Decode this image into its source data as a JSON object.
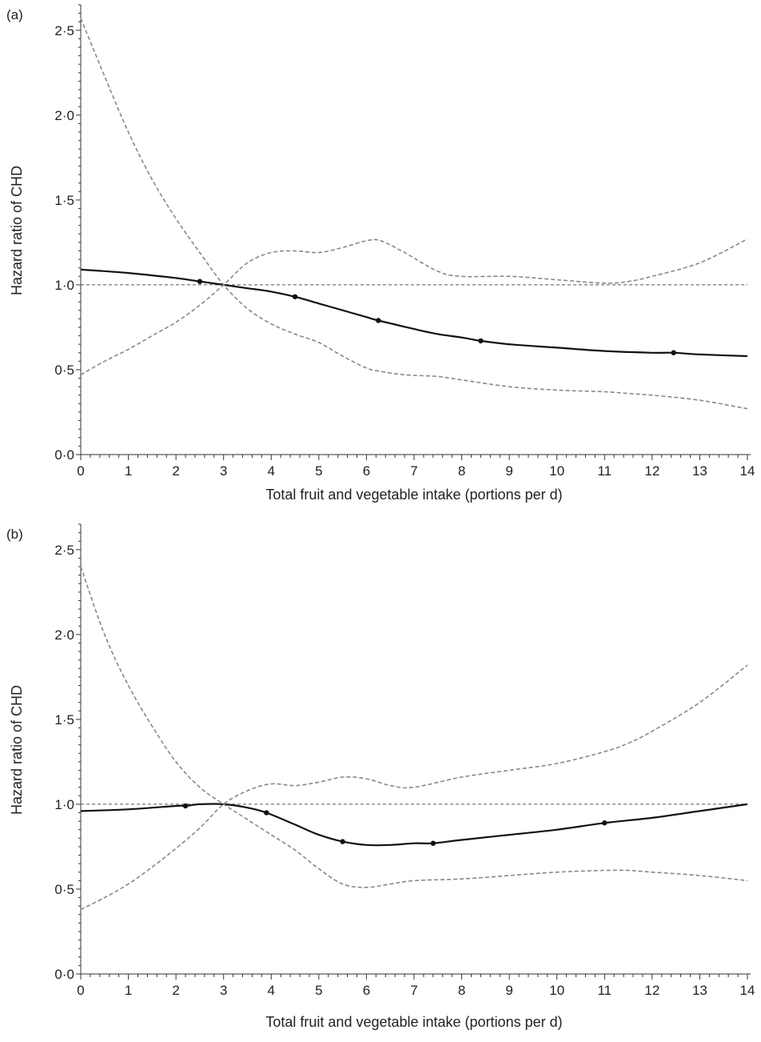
{
  "chart_data": [
    {
      "type": "line",
      "panel_label": "(a)",
      "xlabel": "Total fruit and vegetable intake (portions per d)",
      "ylabel": "Hazard ratio of CHD",
      "xlim": [
        0,
        14
      ],
      "ylim": [
        0,
        2.65
      ],
      "xticks": [
        "0",
        "1",
        "2",
        "3",
        "4",
        "5",
        "6",
        "7",
        "8",
        "9",
        "10",
        "11",
        "12",
        "13",
        "14"
      ],
      "yticks": [
        {
          "value": 0,
          "label": "0·0"
        },
        {
          "value": 0.5,
          "label": "0·5"
        },
        {
          "value": 1,
          "label": "1·0"
        },
        {
          "value": 1.5,
          "label": "1·5"
        },
        {
          "value": 2,
          "label": "2·0"
        },
        {
          "value": 2.5,
          "label": "2·5"
        }
      ],
      "reference_line": 1.0,
      "series": [
        {
          "role": "estimate",
          "style": "solid",
          "x": [
            0,
            1,
            2,
            2.5,
            3,
            3.5,
            4,
            4.5,
            5,
            5.5,
            6,
            6.25,
            7,
            7.5,
            8,
            8.4,
            9,
            10,
            11,
            12,
            12.45,
            13,
            14
          ],
          "y": [
            1.09,
            1.07,
            1.04,
            1.02,
            1.0,
            0.98,
            0.96,
            0.93,
            0.89,
            0.85,
            0.81,
            0.79,
            0.74,
            0.71,
            0.69,
            0.67,
            0.65,
            0.63,
            0.61,
            0.6,
            0.6,
            0.59,
            0.58
          ],
          "markers_x": [
            2.5,
            4.5,
            6.25,
            8.4,
            12.45
          ],
          "markers_y": [
            1.02,
            0.93,
            0.79,
            0.67,
            0.6
          ]
        },
        {
          "role": "upper_ci",
          "style": "dashed",
          "x": [
            0,
            0.5,
            1,
            1.5,
            2,
            2.5,
            3,
            3.5,
            4,
            4.5,
            5,
            5.5,
            6,
            6.3,
            6.8,
            7.5,
            8,
            9,
            10,
            11,
            11.5,
            12,
            13,
            14
          ],
          "y": [
            2.57,
            2.23,
            1.9,
            1.62,
            1.39,
            1.19,
            1.0,
            0.86,
            0.77,
            0.71,
            0.66,
            0.58,
            0.51,
            0.49,
            0.47,
            0.46,
            0.44,
            0.4,
            0.38,
            0.37,
            0.36,
            0.35,
            0.32,
            0.27
          ]
        },
        {
          "role": "lower_ci",
          "style": "dashed",
          "x": [
            0,
            0.5,
            1,
            1.5,
            2,
            2.5,
            3,
            3.5,
            4,
            4.5,
            5,
            5.5,
            6,
            6.3,
            6.8,
            7.5,
            8,
            9,
            10,
            11,
            11.5,
            12,
            13,
            14
          ],
          "y": [
            0.47,
            0.55,
            0.62,
            0.7,
            0.78,
            0.88,
            1.0,
            1.13,
            1.19,
            1.2,
            1.19,
            1.22,
            1.26,
            1.26,
            1.19,
            1.08,
            1.05,
            1.05,
            1.03,
            1.01,
            1.02,
            1.05,
            1.13,
            1.27
          ]
        }
      ]
    },
    {
      "type": "line",
      "panel_label": "(b)",
      "xlabel": "Total fruit and vegetable intake (portions per d)",
      "ylabel": "Hazard ratio of CHD",
      "xlim": [
        0,
        14
      ],
      "ylim": [
        0,
        2.65
      ],
      "xticks": [
        "0",
        "1",
        "2",
        "3",
        "4",
        "5",
        "6",
        "7",
        "8",
        "9",
        "10",
        "11",
        "12",
        "13",
        "14"
      ],
      "yticks": [
        {
          "value": 0,
          "label": "0·0"
        },
        {
          "value": 0.5,
          "label": "0·5"
        },
        {
          "value": 1,
          "label": "1·0"
        },
        {
          "value": 1.5,
          "label": "1·5"
        },
        {
          "value": 2,
          "label": "2·0"
        },
        {
          "value": 2.5,
          "label": "2·5"
        }
      ],
      "reference_line": 1.0,
      "series": [
        {
          "role": "estimate",
          "style": "solid",
          "x": [
            0,
            1,
            2,
            2.2,
            2.5,
            3,
            3.5,
            3.9,
            4.5,
            5,
            5.5,
            6,
            6.5,
            7,
            7.4,
            8,
            9,
            10,
            11,
            12,
            13,
            14
          ],
          "y": [
            0.96,
            0.97,
            0.99,
            0.99,
            1.0,
            1.0,
            0.98,
            0.95,
            0.88,
            0.82,
            0.78,
            0.76,
            0.76,
            0.77,
            0.77,
            0.79,
            0.82,
            0.85,
            0.89,
            0.92,
            0.96,
            1.0
          ],
          "markers_x": [
            2.2,
            3.9,
            5.5,
            7.4,
            11.0
          ],
          "markers_y": [
            0.99,
            0.95,
            0.78,
            0.77,
            0.89
          ]
        },
        {
          "role": "upper_ci",
          "style": "dashed",
          "x": [
            0,
            0.5,
            1,
            1.5,
            2,
            2.5,
            3,
            3.5,
            4,
            4.5,
            5,
            5.5,
            6,
            6.5,
            7,
            8,
            9,
            10,
            11,
            11.5,
            12,
            13,
            14
          ],
          "y": [
            2.4,
            2.0,
            1.7,
            1.46,
            1.25,
            1.1,
            1.0,
            0.91,
            0.82,
            0.73,
            0.62,
            0.53,
            0.51,
            0.53,
            0.55,
            0.56,
            0.58,
            0.6,
            0.61,
            0.61,
            0.6,
            0.58,
            0.55
          ]
        },
        {
          "role": "lower_ci",
          "style": "dashed",
          "x": [
            0,
            0.5,
            1,
            1.5,
            2,
            2.5,
            3,
            3.5,
            4,
            4.5,
            5,
            5.5,
            6,
            6.5,
            7,
            8,
            9,
            10,
            11,
            11.5,
            12,
            13,
            14
          ],
          "y": [
            0.38,
            0.45,
            0.53,
            0.63,
            0.74,
            0.86,
            1.0,
            1.08,
            1.12,
            1.11,
            1.13,
            1.16,
            1.15,
            1.11,
            1.1,
            1.16,
            1.2,
            1.24,
            1.31,
            1.36,
            1.43,
            1.6,
            1.82
          ]
        }
      ]
    }
  ]
}
